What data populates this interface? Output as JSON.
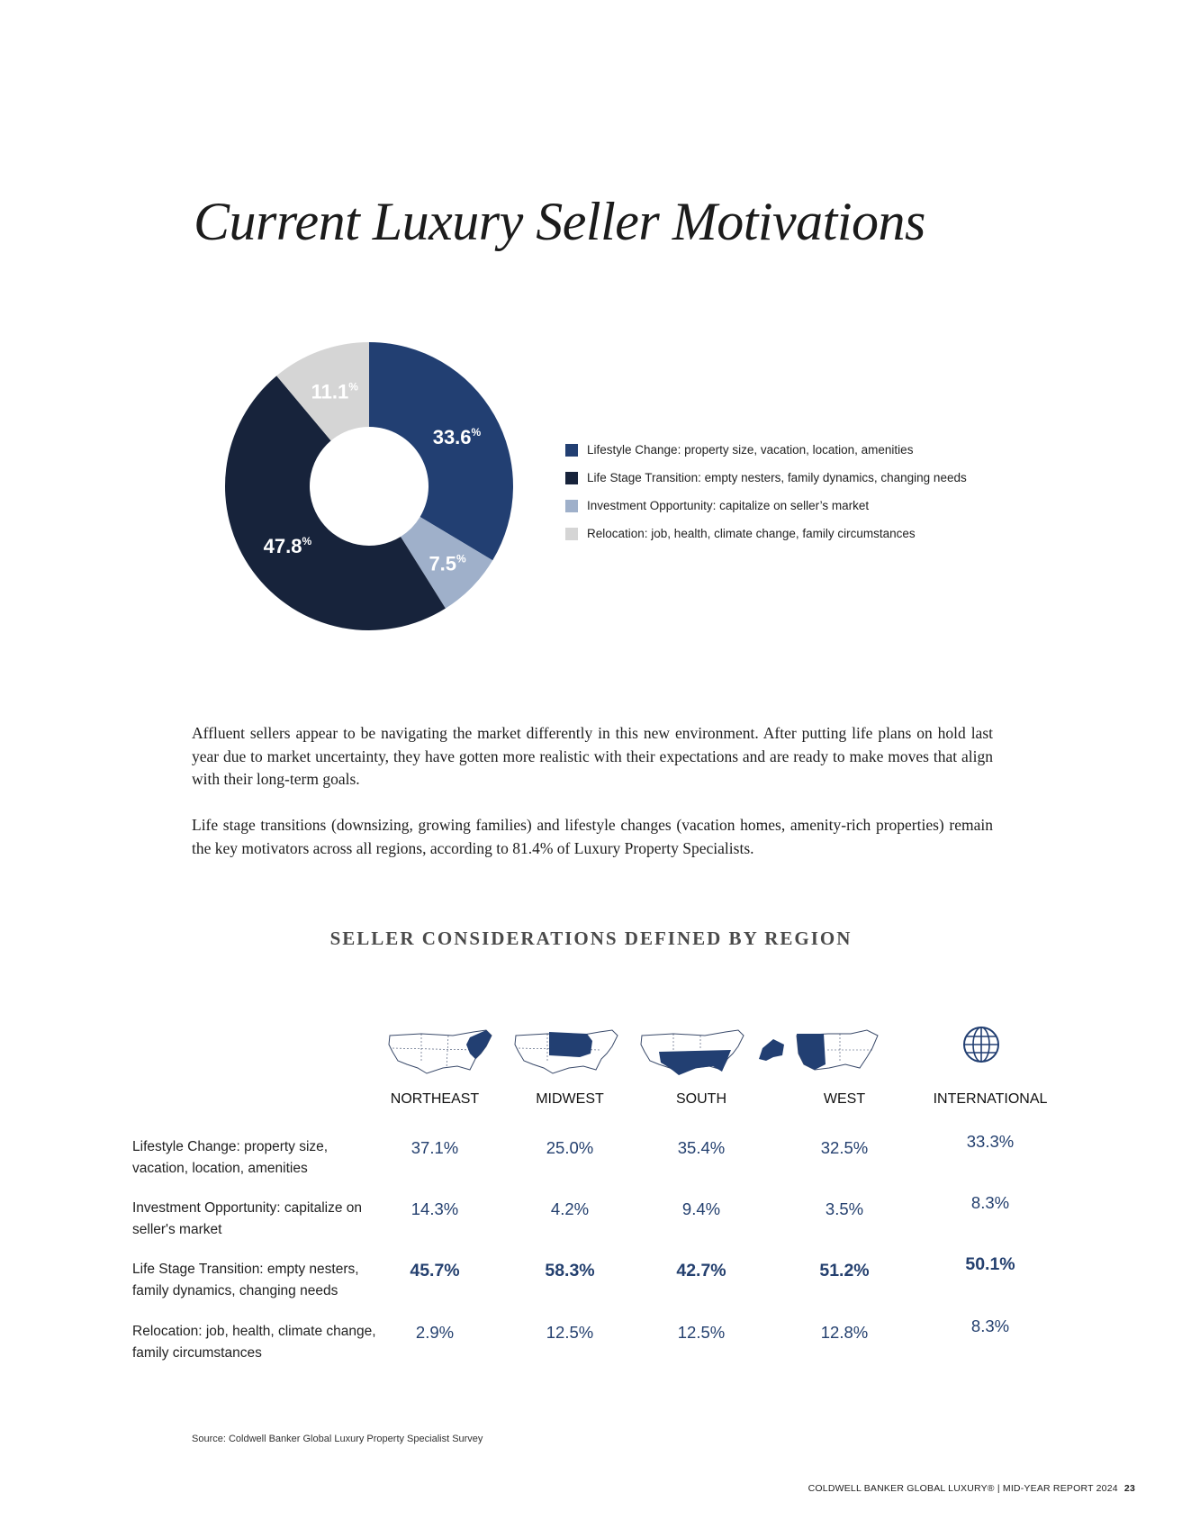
{
  "page_title": "Current Luxury Seller Motivations",
  "chart_data": {
    "type": "pie",
    "title": "Current Luxury Seller Motivations",
    "percent_sign": "%",
    "slices": [
      {
        "label": "Lifestyle Change: property size, vacation, location, amenities",
        "value": 33.6,
        "display": "33.6",
        "color": "#223f72"
      },
      {
        "label": "Investment Opportunity: capitalize on seller's market",
        "value": 7.5,
        "display": "7.5",
        "color": "#9fb0ca"
      },
      {
        "label": "Life Stage Transition: empty nesters, family dynamics, changing needs",
        "value": 47.8,
        "display": "47.8",
        "color": "#17233b"
      },
      {
        "label": "Relocation: job, health, climate change, family circumstances",
        "value": 11.1,
        "display": "11.1",
        "color": "#d5d5d5"
      }
    ],
    "legend": [
      {
        "label": "Lifestyle Change: property size, vacation, location, amenities",
        "color": "#223f72"
      },
      {
        "label": "Life Stage Transition: empty nesters, family dynamics, changing needs",
        "color": "#17233b"
      },
      {
        "label": "Investment Opportunity: capitalize on seller’s market",
        "color": "#9fb0ca"
      },
      {
        "label": "Relocation: job, health, climate change, family circumstances",
        "color": "#d5d5d5"
      }
    ]
  },
  "paragraphs": [
    "Affluent sellers appear to be navigating the market differently in this new environment. After putting life plans on hold last year due to market uncertainty, they have gotten more realistic with their expectations and are ready to make moves that align with their long-term goals.",
    "Life stage transitions (downsizing, growing families) and lifestyle changes (vacation homes, amenity-rich properties) remain the key motivators across all regions, according to 81.4% of Luxury Property Specialists."
  ],
  "region_table": {
    "heading": "SELLER CONSIDERATIONS DEFINED BY REGION",
    "regions": [
      {
        "name": "NORTHEAST",
        "icon": "us-map-northeast-icon"
      },
      {
        "name": "MIDWEST",
        "icon": "us-map-midwest-icon"
      },
      {
        "name": "SOUTH",
        "icon": "us-map-south-icon"
      },
      {
        "name": "WEST",
        "icon": "us-map-west-icon"
      },
      {
        "name": "INTERNATIONAL",
        "icon": "globe-icon"
      }
    ],
    "rows": [
      {
        "label": "Lifestyle Change: property size, vacation, location, amenities",
        "values": [
          "37.1%",
          "25.0%",
          "35.4%",
          "32.5%",
          "33.3%"
        ],
        "bold": false
      },
      {
        "label": "Investment Opportunity: capitalize on seller's market",
        "values": [
          "14.3%",
          "4.2%",
          "9.4%",
          "3.5%",
          "8.3%"
        ],
        "bold": false
      },
      {
        "label": "Life Stage Transition: empty nesters, family dynamics, changing needs",
        "values": [
          "45.7%",
          "58.3%",
          "42.7%",
          "51.2%",
          "50.1%"
        ],
        "bold": true
      },
      {
        "label": "Relocation: job, health, climate change, family circumstances",
        "values": [
          "2.9%",
          "12.5%",
          "12.5%",
          "12.8%",
          "8.3%"
        ],
        "bold": false
      }
    ]
  },
  "source": "Source: Coldwell Banker Global Luxury Property Specialist Survey",
  "footer": {
    "text": "COLDWELL BANKER GLOBAL LUXURY® | MID-YEAR REPORT 2024",
    "page": "23"
  },
  "colors": {
    "navy": "#223f72",
    "accent_text": "#24406f"
  }
}
